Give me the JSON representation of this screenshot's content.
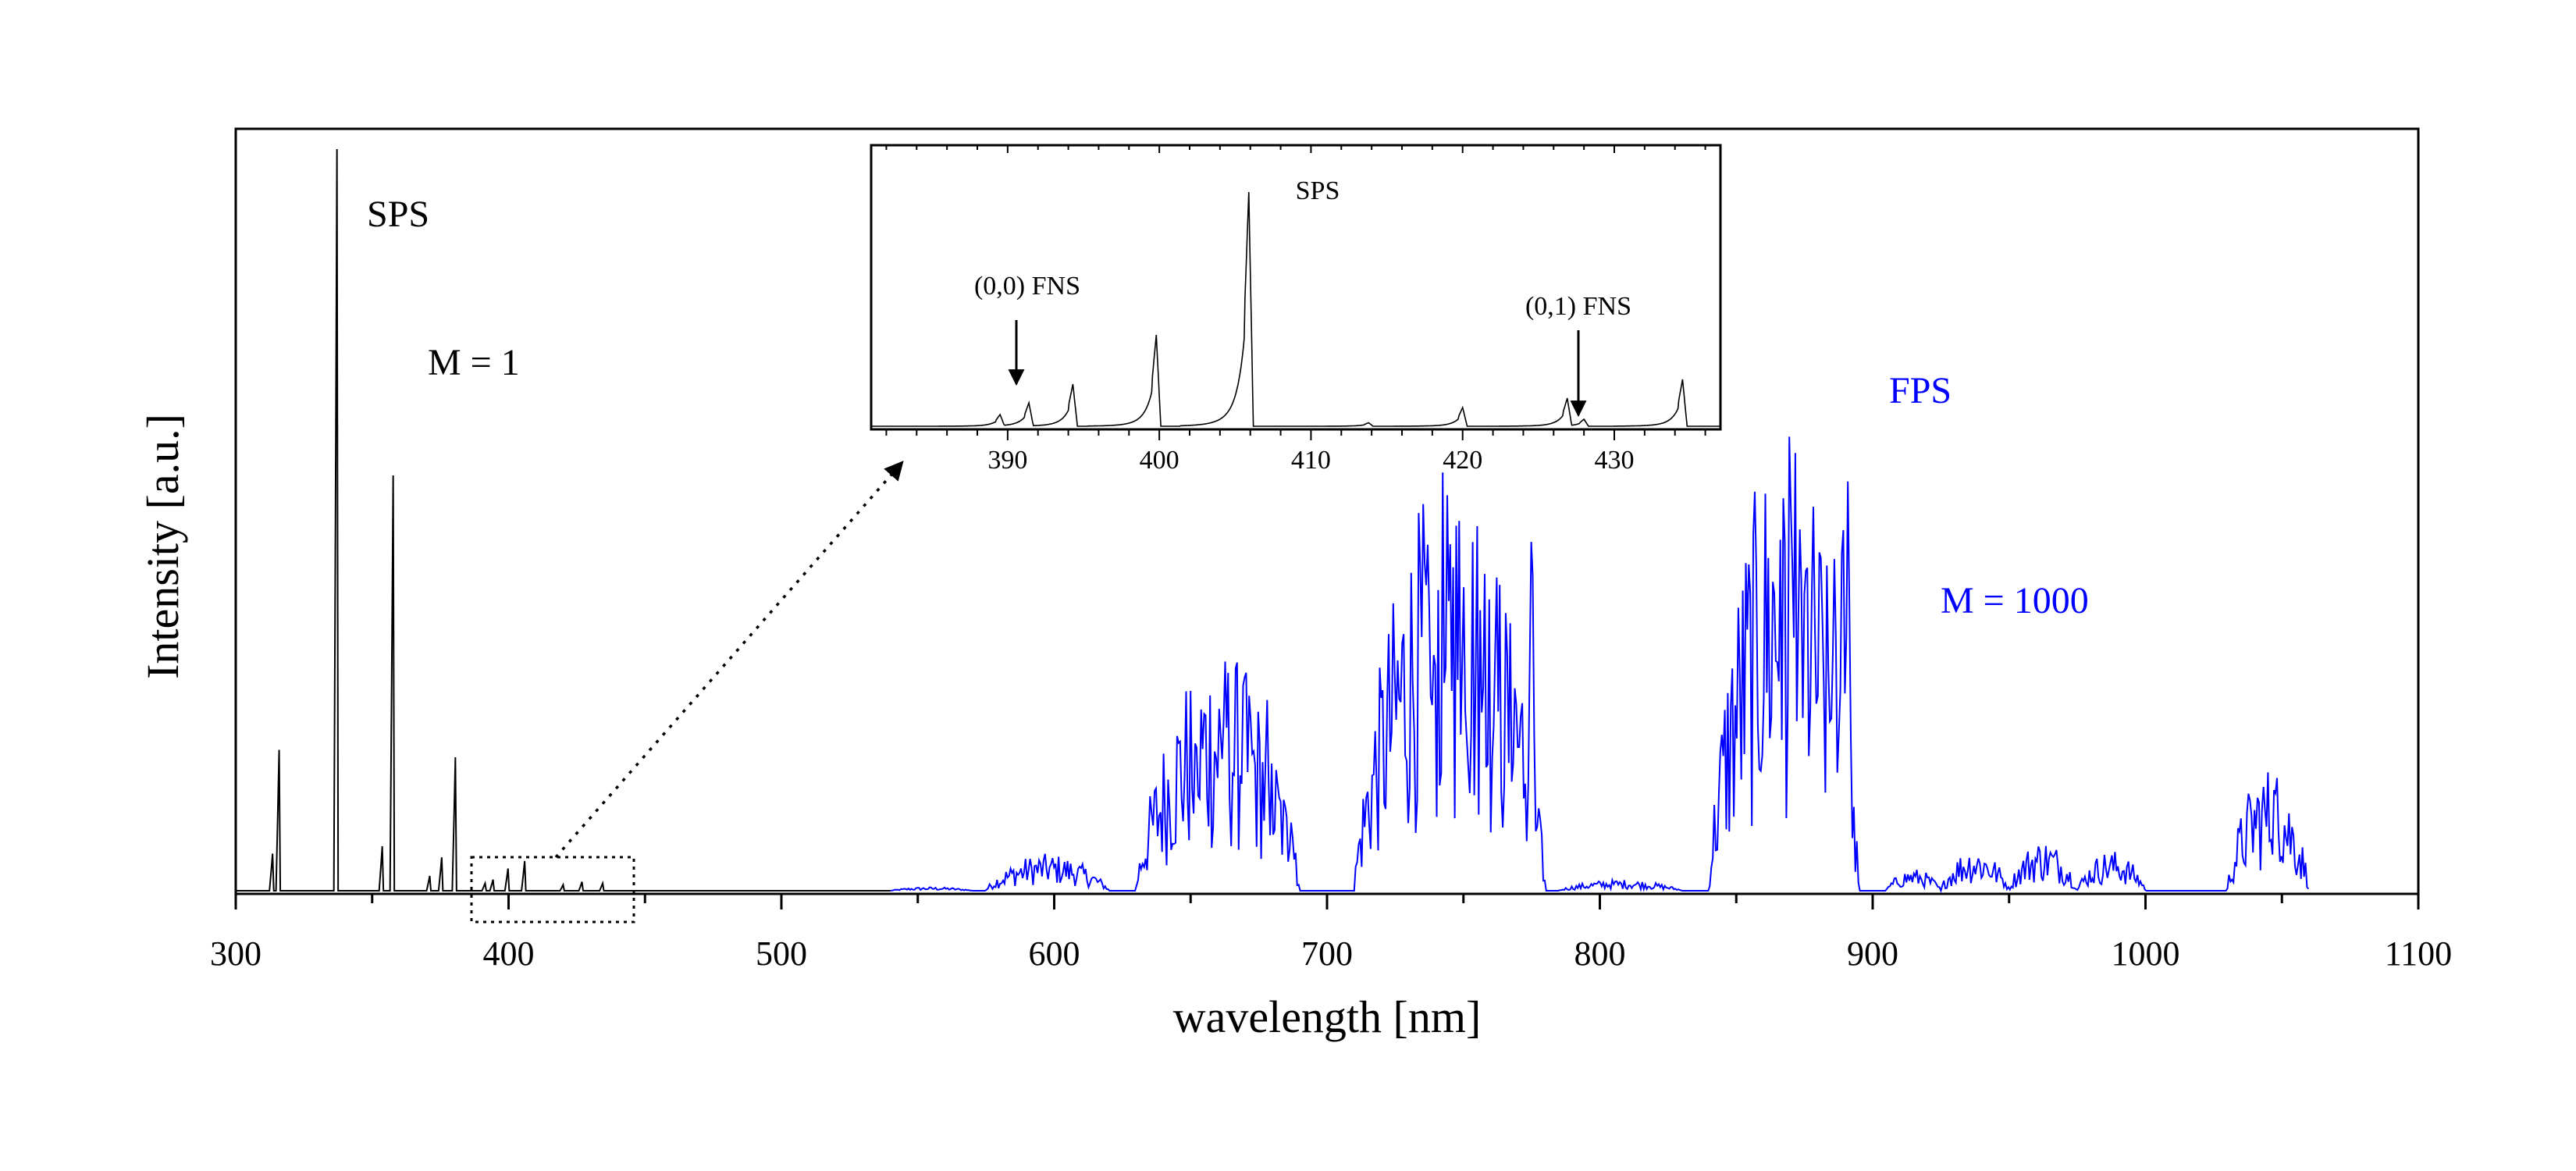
{
  "chart_data": [
    {
      "type": "line",
      "title": "",
      "xlabel": "wavelength [nm]",
      "ylabel": "Intensity [a.u.]",
      "xlim": [
        300,
        1100
      ],
      "ylim": [
        0,
        1.0
      ],
      "xticks": [
        300,
        400,
        500,
        600,
        700,
        800,
        900,
        1000,
        1100
      ],
      "series": [
        {
          "name": "SPS",
          "multiplier_label": "M = 1",
          "color": "#000000",
          "peaks": [
            {
              "x": 313.5,
              "y": 0.05
            },
            {
              "x": 315.9,
              "y": 0.19
            },
            {
              "x": 337.1,
              "y": 1.0
            },
            {
              "x": 353.7,
              "y": 0.06
            },
            {
              "x": 357.7,
              "y": 0.56
            },
            {
              "x": 371.1,
              "y": 0.02
            },
            {
              "x": 375.5,
              "y": 0.045
            },
            {
              "x": 380.5,
              "y": 0.18
            },
            {
              "x": 391.4,
              "y": 0.01
            },
            {
              "x": 394.3,
              "y": 0.015
            },
            {
              "x": 399.8,
              "y": 0.03
            },
            {
              "x": 405.9,
              "y": 0.04
            },
            {
              "x": 420.0,
              "y": 0.008
            },
            {
              "x": 426.9,
              "y": 0.012
            },
            {
              "x": 434.5,
              "y": 0.01
            }
          ]
        },
        {
          "name": "FPS",
          "multiplier_label": "M = 1000",
          "color": "#0000ff",
          "bands": [
            {
              "lo": 540,
              "hi": 570,
              "peak": 0.005
            },
            {
              "lo": 575,
              "hi": 620,
              "peak": 0.05
            },
            {
              "lo": 630,
              "hi": 690,
              "peak": 0.33
            },
            {
              "lo": 710,
              "hi": 780,
              "peak": 0.57
            },
            {
              "lo": 785,
              "hi": 830,
              "peak": 0.015
            },
            {
              "lo": 840,
              "hi": 895,
              "peak": 0.62
            },
            {
              "lo": 905,
              "hi": 925,
              "peak": 0.03
            },
            {
              "lo": 925,
              "hi": 950,
              "peak": 0.06
            },
            {
              "lo": 950,
              "hi": 975,
              "peak": 0.07
            },
            {
              "lo": 975,
              "hi": 1000,
              "peak": 0.055
            },
            {
              "lo": 1030,
              "hi": 1060,
              "peak": 0.17
            }
          ],
          "band_heads": [
            {
              "x": 652,
              "y": 0.23
            },
            {
              "x": 662,
              "y": 0.27
            },
            {
              "x": 670,
              "y": 0.33
            },
            {
              "x": 678,
              "y": 0.27
            },
            {
              "x": 687,
              "y": 0.11
            },
            {
              "x": 738,
              "y": 0.27
            },
            {
              "x": 745,
              "y": 0.33
            },
            {
              "x": 750,
              "y": 0.46
            },
            {
              "x": 757,
              "y": 0.34
            },
            {
              "x": 762,
              "y": 0.49
            },
            {
              "x": 769,
              "y": 0.34
            },
            {
              "x": 775,
              "y": 0.57
            },
            {
              "x": 866,
              "y": 0.38
            },
            {
              "x": 870,
              "y": 0.46
            },
            {
              "x": 873,
              "y": 0.46
            },
            {
              "x": 886,
              "y": 0.52
            },
            {
              "x": 889,
              "y": 0.62
            },
            {
              "x": 891,
              "y": 0.61
            },
            {
              "x": 1048,
              "y": 0.17
            }
          ]
        }
      ],
      "annotations": [
        {
          "text": "SPS",
          "near_x": 348
        },
        {
          "text": "M = 1",
          "near_x": 359
        },
        {
          "text": "FPS",
          "near_x": 919
        },
        {
          "text": "M = 1000",
          "near_x": 935
        }
      ]
    },
    {
      "type": "line",
      "role": "inset",
      "title": "SPS",
      "xlim": [
        381,
        437
      ],
      "ylim": [
        0,
        1.0
      ],
      "xticks": [
        390,
        400,
        410,
        420,
        430
      ],
      "series": [
        {
          "name": "SPS zoom",
          "color": "#000000",
          "peaks": [
            {
              "x": 389.5,
              "y": 0.05
            },
            {
              "x": 391.4,
              "y": 0.1
            },
            {
              "x": 394.3,
              "y": 0.18
            },
            {
              "x": 399.8,
              "y": 0.39
            },
            {
              "x": 405.9,
              "y": 1.0
            },
            {
              "x": 413.8,
              "y": 0.015
            },
            {
              "x": 420.0,
              "y": 0.08
            },
            {
              "x": 426.9,
              "y": 0.12
            },
            {
              "x": 428.0,
              "y": 0.03
            },
            {
              "x": 434.5,
              "y": 0.2
            }
          ]
        }
      ],
      "annotations": [
        {
          "text": "(0,0) FNS",
          "x": 391.4
        },
        {
          "text": "(0,1) FNS",
          "x": 427.8
        }
      ]
    }
  ]
}
